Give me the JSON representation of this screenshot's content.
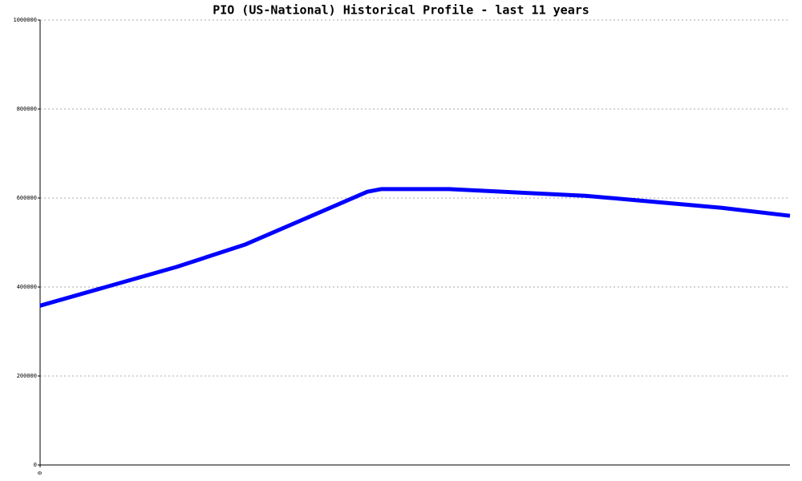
{
  "chart_data": {
    "type": "line",
    "title": "PIO (US-National) Historical Profile - last 11 years",
    "x": [
      0,
      2,
      3,
      4.8,
      5,
      6,
      8,
      10,
      11
    ],
    "series": [
      {
        "name": "PIO",
        "color": "#0000ff",
        "values": [
          358000,
          445000,
          495000,
          614000,
          620000,
          620000,
          605000,
          578000,
          560000
        ]
      }
    ],
    "xlim": [
      0,
      11
    ],
    "xticks": [
      0
    ],
    "ylim": [
      0,
      1000000
    ],
    "yticks": [
      0,
      200000,
      400000,
      600000,
      800000,
      1000000
    ],
    "grid": true
  }
}
